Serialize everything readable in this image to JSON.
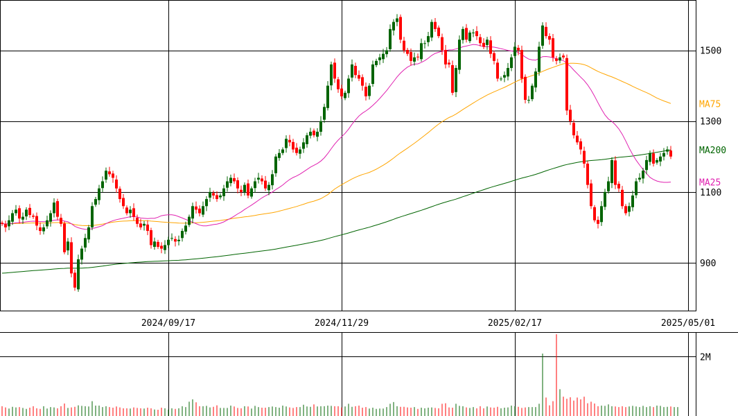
{
  "chart_data": [
    {
      "type": "candlestick",
      "title": "",
      "y_ticks": [
        "1500",
        "1300",
        "1100",
        "900"
      ],
      "y_tick_values": [
        1500,
        1300,
        1100,
        900
      ],
      "ylim": [
        765,
        1640
      ],
      "x_ticks": [
        "2024/09/17",
        "2024/11/29",
        "2025/02/17",
        "2025/05/01"
      ],
      "x_tick_index": [
        48,
        98,
        148,
        198
      ],
      "grid": true,
      "colors": {
        "up": "#006400",
        "down": "#ff0000",
        "ma25": "#e020b0",
        "ma75": "#ffa500",
        "ma200": "#006400"
      },
      "series": [
        {
          "name": "MA25",
          "label": "MA25",
          "color": "#e020b0"
        },
        {
          "name": "MA75",
          "label": "MA75",
          "color": "#ffa500"
        },
        {
          "name": "MA200",
          "label": "MA200",
          "color": "#006400"
        }
      ],
      "closes": [
        1010,
        1000,
        1020,
        1040,
        1050,
        1025,
        1030,
        1050,
        1035,
        1030,
        1005,
        990,
        1000,
        1020,
        1040,
        1070,
        1030,
        1010,
        930,
        960,
        870,
        830,
        910,
        940,
        970,
        1000,
        1060,
        1080,
        1110,
        1130,
        1160,
        1150,
        1140,
        1110,
        1080,
        1060,
        1040,
        1050,
        1030,
        1010,
        1000,
        1010,
        990,
        950,
        960,
        945,
        940,
        950,
        965,
        970,
        960,
        965,
        990,
        1005,
        1030,
        1060,
        1050,
        1040,
        1060,
        1080,
        1100,
        1090,
        1080,
        1090,
        1110,
        1130,
        1140,
        1130,
        1110,
        1100,
        1120,
        1090,
        1110,
        1130,
        1140,
        1130,
        1110,
        1120,
        1150,
        1200,
        1210,
        1220,
        1250,
        1240,
        1220,
        1210,
        1220,
        1240,
        1260,
        1270,
        1260,
        1270,
        1300,
        1340,
        1400,
        1460,
        1420,
        1390,
        1370,
        1380,
        1420,
        1460,
        1430,
        1420,
        1400,
        1370,
        1400,
        1460,
        1470,
        1480,
        1490,
        1500,
        1560,
        1580,
        1590,
        1530,
        1500,
        1490,
        1470,
        1480,
        1480,
        1520,
        1520,
        1540,
        1580,
        1560,
        1540,
        1500,
        1460,
        1460,
        1380,
        1450,
        1530,
        1560,
        1530,
        1550,
        1550,
        1540,
        1520,
        1510,
        1530,
        1490,
        1470,
        1420,
        1420,
        1430,
        1450,
        1480,
        1510,
        1500,
        1420,
        1360,
        1360,
        1400,
        1440,
        1510,
        1570,
        1540,
        1530,
        1480,
        1470,
        1480,
        1480,
        1330,
        1300,
        1260,
        1240,
        1220,
        1180,
        1120,
        1060,
        1020,
        1010,
        1060,
        1100,
        1130,
        1190,
        1120,
        1110,
        1060,
        1040,
        1060,
        1090,
        1130,
        1140,
        1160,
        1190,
        1210,
        1180,
        1190,
        1200,
        1210,
        1220,
        1200
      ]
    },
    {
      "type": "bar",
      "name": "volume",
      "y_ticks": [
        "2M"
      ],
      "y_tick_values": [
        2000000
      ],
      "ylim": [
        0,
        2800000
      ],
      "volumes": [
        330000,
        290000,
        250000,
        310000,
        290000,
        300000,
        270000,
        240000,
        280000,
        330000,
        260000,
        240000,
        330000,
        250000,
        300000,
        290000,
        260000,
        330000,
        420000,
        270000,
        290000,
        310000,
        360000,
        340000,
        330000,
        320000,
        500000,
        350000,
        350000,
        300000,
        330000,
        300000,
        280000,
        320000,
        290000,
        260000,
        260000,
        250000,
        290000,
        270000,
        260000,
        250000,
        280000,
        260000,
        220000,
        210000,
        280000,
        260000,
        220000,
        260000,
        240000,
        260000,
        330000,
        300000,
        480000,
        560000,
        460000,
        330000,
        330000,
        340000,
        290000,
        310000,
        360000,
        270000,
        270000,
        270000,
        350000,
        320000,
        270000,
        260000,
        330000,
        320000,
        250000,
        340000,
        300000,
        280000,
        280000,
        300000,
        320000,
        300000,
        280000,
        350000,
        320000,
        290000,
        270000,
        300000,
        300000,
        380000,
        320000,
        310000,
        390000,
        320000,
        330000,
        330000,
        350000,
        340000,
        330000,
        330000,
        290000,
        320000,
        410000,
        310000,
        330000,
        350000,
        280000,
        300000,
        250000,
        280000,
        240000,
        250000,
        250000,
        300000,
        410000,
        470000,
        330000,
        310000,
        310000,
        290000,
        280000,
        300000,
        240000,
        280000,
        260000,
        280000,
        290000,
        270000,
        260000,
        410000,
        430000,
        290000,
        280000,
        410000,
        340000,
        330000,
        290000,
        270000,
        300000,
        260000,
        330000,
        260000,
        320000,
        290000,
        280000,
        310000,
        260000,
        280000,
        290000,
        350000,
        330000,
        310000,
        270000,
        290000,
        300000,
        300000,
        300000,
        410000,
        2100000,
        620000,
        360000,
        500000,
        2750000,
        900000,
        650000,
        580000,
        630000,
        520000,
        620000,
        560000,
        650000,
        430000,
        480000,
        420000,
        330000,
        350000,
        340000,
        390000,
        330000,
        320000,
        300000,
        330000,
        300000,
        320000,
        340000,
        320000,
        300000,
        340000,
        300000,
        330000,
        300000,
        350000,
        340000,
        300000,
        310000,
        320000,
        300000,
        300000
      ]
    }
  ]
}
